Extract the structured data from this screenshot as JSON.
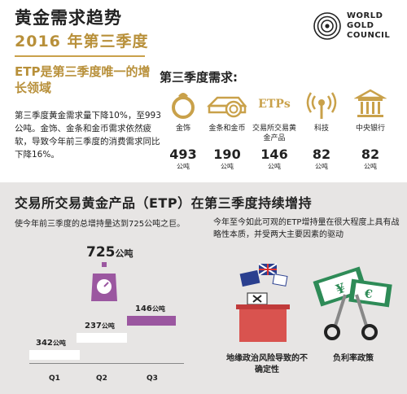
{
  "header": {
    "title": "黄金需求趋势",
    "subtitle": "2016 年第三季度",
    "logo_lines": [
      "WORLD",
      "GOLD",
      "COUNCIL"
    ]
  },
  "intro": {
    "etp_heading": "ETP是第三季度唯一的增长领域",
    "body": "第三季度黄金需求量下降10%，至993公吨。金饰、金条和金币需求依然疲软，导致今年前三季度的消费需求同比下降16%。"
  },
  "q3_demand": {
    "heading": "第三季度需求:",
    "unit": "公吨",
    "categories": [
      {
        "label": "金饰",
        "value": "493",
        "icon": "jewellery-icon"
      },
      {
        "label": "金条和金币",
        "value": "190",
        "icon": "bar-and-coin-icon"
      },
      {
        "label": "交易所交易黄金产品",
        "value": "146",
        "icon": "etps-icon",
        "icon_text": "ETPs"
      },
      {
        "label": "科技",
        "value": "82",
        "icon": "technology-icon"
      },
      {
        "label": "中央银行",
        "value": "82",
        "icon": "central-bank-icon"
      }
    ]
  },
  "etp_section": {
    "title": "交易所交易黄金产品（ETP）在第三季度持续增持",
    "left_text": "使今年前三季度的总增持量达到725公吨之巨。",
    "right_text": "今年至今如此可观的ETP增持量在很大程度上具有战略性本质，并受两大主要因素的驱动",
    "total_value": "725",
    "total_unit": "公吨",
    "drivers": [
      {
        "label": "地缘政治风险导致的不确定性",
        "icon": "ballot-box-icon"
      },
      {
        "label": "负利率政策",
        "icon": "scissors-money-icon"
      }
    ]
  },
  "chart_data": {
    "type": "bar",
    "categories": [
      "Q1",
      "Q2",
      "Q3"
    ],
    "values": [
      342,
      237,
      146
    ],
    "value_unit": "公吨",
    "colors": [
      "#ffffff",
      "#ffffff",
      "#9b57a0"
    ]
  },
  "colors": {
    "gold": "#b8903a",
    "purple": "#9b57a0",
    "bottom_bg": "#e7e5e4"
  }
}
